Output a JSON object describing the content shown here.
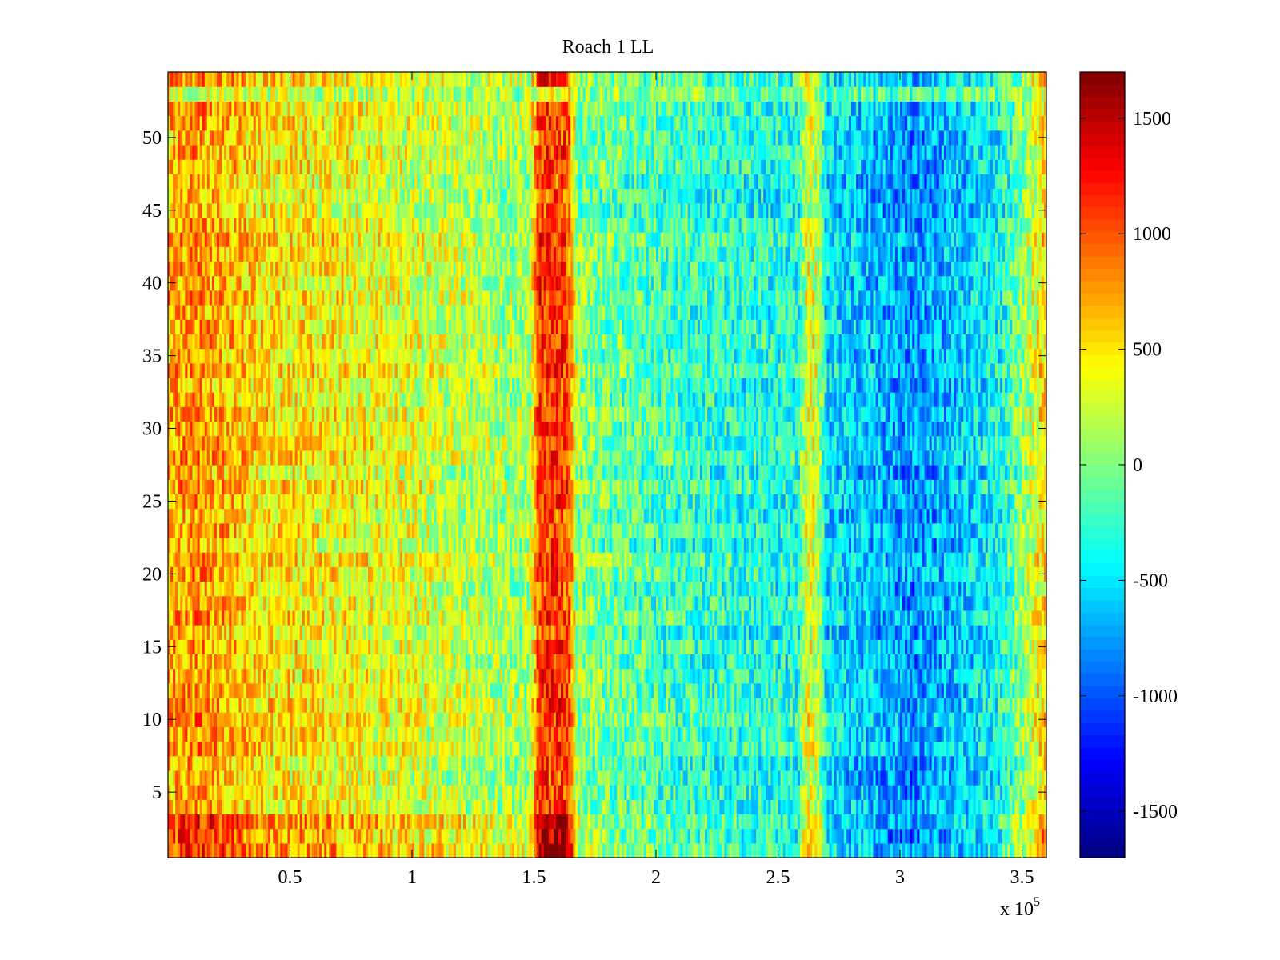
{
  "chart_data": {
    "type": "heatmap",
    "title": "Roach 1 LL",
    "xlabel": "",
    "ylabel": "",
    "x_multiplier_label": {
      "base": "x 10",
      "exponent": "5"
    },
    "xlim": [
      0,
      3.6
    ],
    "ylim": [
      0.5,
      54.5
    ],
    "x_ticks": [
      {
        "value": 0.5,
        "label": "0.5"
      },
      {
        "value": 1,
        "label": "1"
      },
      {
        "value": 1.5,
        "label": "1.5"
      },
      {
        "value": 2,
        "label": "2"
      },
      {
        "value": 2.5,
        "label": "2.5"
      },
      {
        "value": 3,
        "label": "3"
      },
      {
        "value": 3.5,
        "label": "3.5"
      }
    ],
    "y_ticks": [
      {
        "value": 5,
        "label": "5"
      },
      {
        "value": 10,
        "label": "10"
      },
      {
        "value": 15,
        "label": "15"
      },
      {
        "value": 20,
        "label": "20"
      },
      {
        "value": 25,
        "label": "25"
      },
      {
        "value": 30,
        "label": "30"
      },
      {
        "value": 35,
        "label": "35"
      },
      {
        "value": 40,
        "label": "40"
      },
      {
        "value": 45,
        "label": "45"
      },
      {
        "value": 50,
        "label": "50"
      }
    ],
    "rows": 54,
    "color_range": [
      -1700,
      1700
    ],
    "colormap": "jet",
    "colorbar": {
      "placement": "right",
      "ticks": [
        {
          "value": 1500,
          "label": "1500"
        },
        {
          "value": 1000,
          "label": "1000"
        },
        {
          "value": 500,
          "label": "500"
        },
        {
          "value": 0,
          "label": "0"
        },
        {
          "value": -500,
          "label": "-500"
        },
        {
          "value": -1000,
          "label": "-1000"
        },
        {
          "value": -1500,
          "label": "-1500"
        }
      ]
    },
    "column_profile": [
      {
        "x": 0.0,
        "v": 650
      },
      {
        "x": 0.1,
        "v": 800
      },
      {
        "x": 0.2,
        "v": 700
      },
      {
        "x": 0.4,
        "v": 500
      },
      {
        "x": 0.7,
        "v": 420
      },
      {
        "x": 1.0,
        "v": 300
      },
      {
        "x": 1.3,
        "v": 150
      },
      {
        "x": 1.48,
        "v": 80
      },
      {
        "x": 1.52,
        "v": 1100
      },
      {
        "x": 1.64,
        "v": 1050
      },
      {
        "x": 1.68,
        "v": 0
      },
      {
        "x": 2.0,
        "v": -200
      },
      {
        "x": 2.3,
        "v": -300
      },
      {
        "x": 2.58,
        "v": -350
      },
      {
        "x": 2.62,
        "v": 350
      },
      {
        "x": 2.66,
        "v": 250
      },
      {
        "x": 2.7,
        "v": -500
      },
      {
        "x": 2.9,
        "v": -650
      },
      {
        "x": 3.05,
        "v": -800
      },
      {
        "x": 3.2,
        "v": -650
      },
      {
        "x": 3.4,
        "v": -400
      },
      {
        "x": 3.52,
        "v": 100
      },
      {
        "x": 3.6,
        "v": 600
      }
    ],
    "row_bands": [
      {
        "row_from": 1,
        "row_to": 3,
        "offset": 200,
        "scale": 1.3
      },
      {
        "row_from": 53,
        "row_to": 53,
        "offset": 0,
        "scale": 0.35
      },
      {
        "row_from": 54,
        "row_to": 54,
        "offset": 150,
        "scale": 1.0
      }
    ],
    "noise_amplitude": 420
  }
}
